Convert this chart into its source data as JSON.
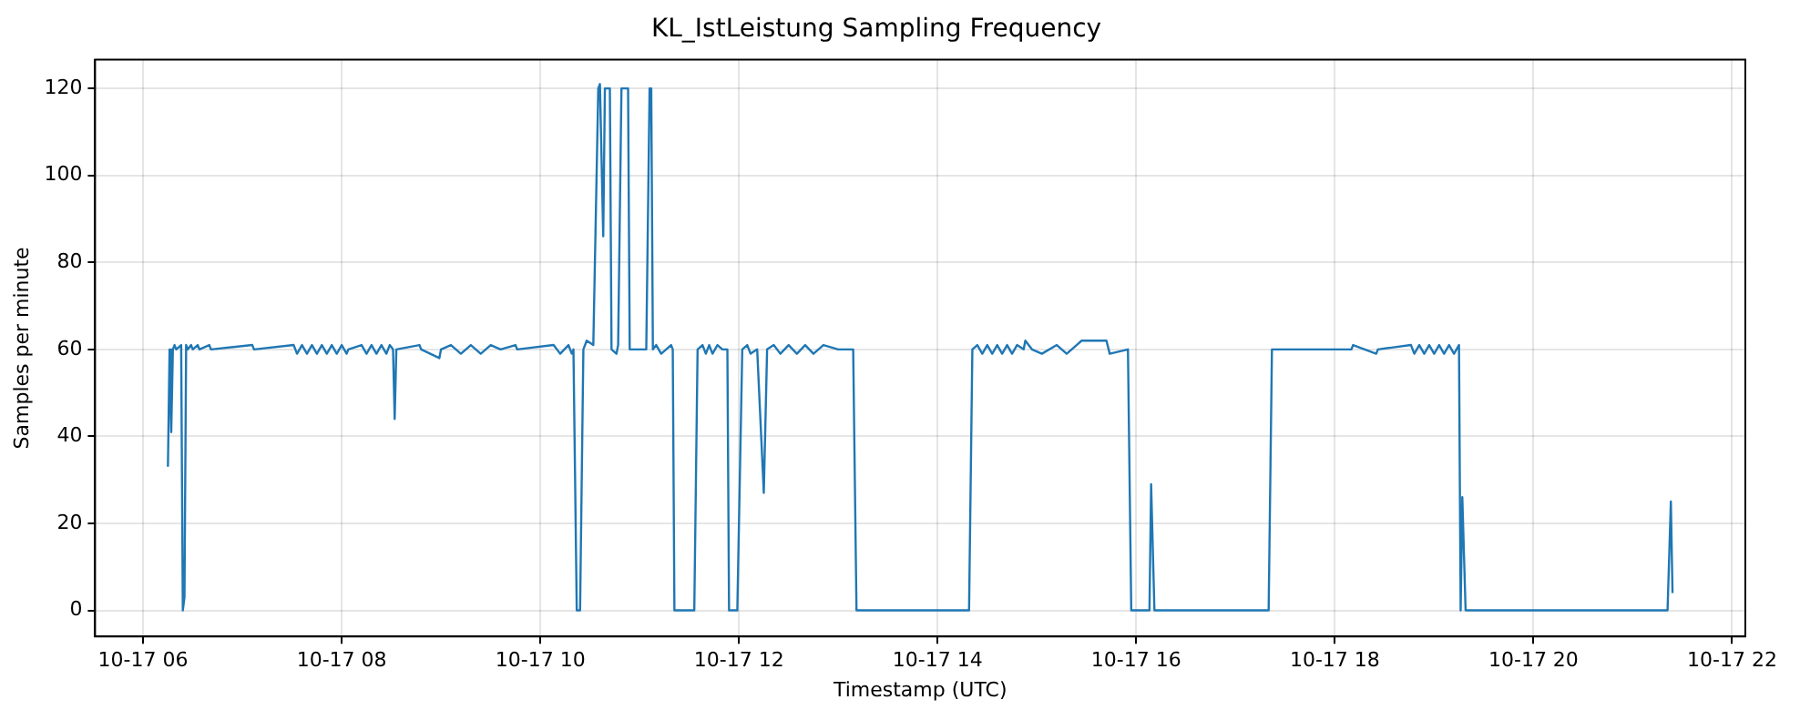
{
  "chart_data": {
    "type": "line",
    "title": "KL_IstLeistung Sampling Frequency",
    "xlabel": "Timestamp (UTC)",
    "ylabel": "Samples per minute",
    "xlim": [
      "--10-17T05:31",
      "--10-17T22:08"
    ],
    "xticks": [
      {
        "value": "--10-17T06:00",
        "label": "10-17 06"
      },
      {
        "value": "--10-17T08:00",
        "label": "10-17 08"
      },
      {
        "value": "--10-17T10:00",
        "label": "10-17 10"
      },
      {
        "value": "--10-17T12:00",
        "label": "10-17 12"
      },
      {
        "value": "--10-17T14:00",
        "label": "10-17 14"
      },
      {
        "value": "--10-17T16:00",
        "label": "10-17 16"
      },
      {
        "value": "--10-17T18:00",
        "label": "10-17 18"
      },
      {
        "value": "--10-17T20:00",
        "label": "10-17 20"
      },
      {
        "value": "--10-17T22:00",
        "label": "10-17 22"
      }
    ],
    "ylim": [
      -6,
      126.6
    ],
    "yticks": [
      0,
      20,
      40,
      60,
      80,
      100,
      120
    ],
    "grid": true,
    "marker": "none",
    "line_style": "solid",
    "series": [
      {
        "color": "#1f77b4",
        "x": [
          "--10-17T06:15",
          "--10-17T06:16",
          "--10-17T06:17",
          "--10-17T06:18",
          "--10-17T06:19",
          "--10-17T06:20",
          "--10-17T06:23",
          "--10-17T06:24",
          "--10-17T06:25",
          "--10-17T06:26",
          "--10-17T06:27",
          "--10-17T06:29",
          "--10-17T06:30",
          "--10-17T06:33",
          "--10-17T06:34",
          "--10-17T06:40",
          "--10-17T06:41",
          "--10-17T07:06",
          "--10-17T07:07",
          "--10-17T07:31",
          "--10-17T07:33",
          "--10-17T07:36",
          "--10-17T07:39",
          "--10-17T07:42",
          "--10-17T07:45",
          "--10-17T07:48",
          "--10-17T07:51",
          "--10-17T07:54",
          "--10-17T07:57",
          "--10-17T08:00",
          "--10-17T08:03",
          "--10-17T08:04",
          "--10-17T08:12",
          "--10-17T08:15",
          "--10-17T08:18",
          "--10-17T08:21",
          "--10-17T08:24",
          "--10-17T08:27",
          "--10-17T08:29",
          "--10-17T08:31",
          "--10-17T08:32",
          "--10-17T08:33",
          "--10-17T08:47",
          "--10-17T08:48",
          "--10-17T08:59",
          "--10-17T09:00",
          "--10-17T09:06",
          "--10-17T09:12",
          "--10-17T09:18",
          "--10-17T09:24",
          "--10-17T09:30",
          "--10-17T09:36",
          "--10-17T09:45",
          "--10-17T09:46",
          "--10-17T10:08",
          "--10-17T10:12",
          "--10-17T10:17",
          "--10-17T10:19",
          "--10-17T10:20",
          "--10-17T10:22",
          "--10-17T10:24",
          "--10-17T10:26",
          "--10-17T10:28",
          "--10-17T10:32",
          "--10-17T10:35",
          "--10-17T10:36",
          "--10-17T10:38",
          "--10-17T10:39",
          "--10-17T10:42",
          "--10-17T10:43",
          "--10-17T10:46",
          "--10-17T10:47",
          "--10-17T10:49",
          "--10-17T10:53",
          "--10-17T10:54",
          "--10-17T11:04",
          "--10-17T11:06",
          "--10-17T11:07",
          "--10-17T11:08",
          "--10-17T11:10",
          "--10-17T11:13",
          "--10-17T11:19",
          "--10-17T11:20",
          "--10-17T11:21",
          "--10-17T11:33",
          "--10-17T11:35",
          "--10-17T11:38",
          "--10-17T11:40",
          "--10-17T11:42",
          "--10-17T11:44",
          "--10-17T11:47",
          "--10-17T11:50",
          "--10-17T11:53",
          "--10-17T11:54",
          "--10-17T11:59",
          "--10-17T12:02",
          "--10-17T12:05",
          "--10-17T12:07",
          "--10-17T12:11",
          "--10-17T12:15",
          "--10-17T12:17",
          "--10-17T12:21",
          "--10-17T12:25",
          "--10-17T12:30",
          "--10-17T12:35",
          "--10-17T12:40",
          "--10-17T12:45",
          "--10-17T12:51",
          "--10-17T13:00",
          "--10-17T13:09",
          "--10-17T13:11",
          "--10-17T14:19",
          "--10-17T14:21",
          "--10-17T14:24",
          "--10-17T14:27",
          "--10-17T14:30",
          "--10-17T14:33",
          "--10-17T14:36",
          "--10-17T14:39",
          "--10-17T14:42",
          "--10-17T14:45",
          "--10-17T14:48",
          "--10-17T14:52",
          "--10-17T14:53",
          "--10-17T14:57",
          "--10-17T15:03",
          "--10-17T15:12",
          "--10-17T15:18",
          "--10-17T15:24",
          "--10-17T15:27",
          "--10-17T15:42",
          "--10-17T15:44",
          "--10-17T15:55",
          "--10-17T15:57",
          "--10-17T16:08",
          "--10-17T16:09",
          "--10-17T16:11",
          "--10-17T17:20",
          "--10-17T17:22",
          "--10-17T18:10",
          "--10-17T18:11",
          "--10-17T18:25",
          "--10-17T18:26",
          "--10-17T18:46",
          "--10-17T18:48",
          "--10-17T18:51",
          "--10-17T18:54",
          "--10-17T18:57",
          "--10-17T19:00",
          "--10-17T19:03",
          "--10-17T19:06",
          "--10-17T19:09",
          "--10-17T19:12",
          "--10-17T19:15",
          "--10-17T19:16",
          "--10-17T19:17",
          "--10-17T19:19",
          "--10-17T21:21",
          "--10-17T21:23",
          "--10-17T21:24"
        ],
        "values": [
          33,
          60,
          41,
          60,
          61,
          60,
          61,
          0,
          3,
          61,
          60,
          61,
          60,
          61,
          60,
          61,
          60,
          61,
          60,
          61,
          59,
          61,
          59,
          61,
          59,
          61,
          59,
          61,
          59,
          61,
          59,
          60,
          61,
          59,
          61,
          59,
          61,
          59,
          61,
          60,
          44,
          60,
          61,
          60,
          58,
          60,
          61,
          59,
          61,
          59,
          61,
          60,
          61,
          60,
          61,
          59,
          61,
          59,
          60,
          0,
          0,
          60,
          62,
          61,
          120,
          121,
          86,
          120,
          120,
          60,
          59,
          61,
          120,
          120,
          60,
          60,
          120,
          120,
          60,
          61,
          59,
          61,
          60,
          0,
          0,
          60,
          61,
          59,
          61,
          59,
          61,
          60,
          60,
          0,
          0,
          60,
          61,
          59,
          60,
          27,
          60,
          61,
          59,
          61,
          59,
          61,
          59,
          61,
          60,
          60,
          0,
          0,
          60,
          61,
          59,
          61,
          59,
          61,
          59,
          61,
          59,
          61,
          60,
          62,
          60,
          59,
          61,
          59,
          61,
          62,
          62,
          59,
          60,
          0,
          0,
          29,
          0,
          0,
          60,
          60,
          61,
          59,
          60,
          61,
          59,
          61,
          59,
          61,
          59,
          61,
          59,
          61,
          59,
          61,
          0,
          26,
          0,
          0,
          25,
          4
        ]
      }
    ]
  }
}
